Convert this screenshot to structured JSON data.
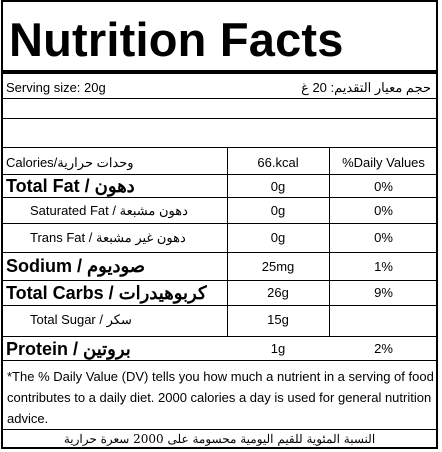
{
  "title": "Nutrition Facts",
  "serving": {
    "en": "Serving size: 20g",
    "ar": "حجم معيار التقديم: 20 غ"
  },
  "header": {
    "calories_label": "Calories/وحدات حرارية",
    "calories_value": "66.kcal",
    "dv_header": "%Daily Values"
  },
  "rows": [
    {
      "label": "Total Fat / دهون",
      "amount": "0g",
      "dv": "0%"
    },
    {
      "label": "Saturated Fat / دهون مشبعة",
      "amount": "0g",
      "dv": "0%"
    },
    {
      "label": "Trans Fat / دهون غير مشبعة",
      "amount": "0g",
      "dv": "0%"
    },
    {
      "label": "Sodium / صوديوم",
      "amount": "25mg",
      "dv": "1%"
    },
    {
      "label": "Total Carbs / كربوهيدرات",
      "amount": "26g",
      "dv": "9%"
    },
    {
      "label": "Total Sugar / سكر",
      "amount": "15g",
      "dv": ""
    },
    {
      "label": "Protein / بروتين",
      "amount": "1g",
      "dv": "2%"
    }
  ],
  "footnote": {
    "en": "*The % Daily Value (DV) tells you how much a nutrient in a serving of food contributes to a daily diet. 2000 calories a day is used for general nutrition advice.",
    "ar": "النسبة المئوية للقيم اليومية محسومة على 2000 سعرة حرارية"
  }
}
